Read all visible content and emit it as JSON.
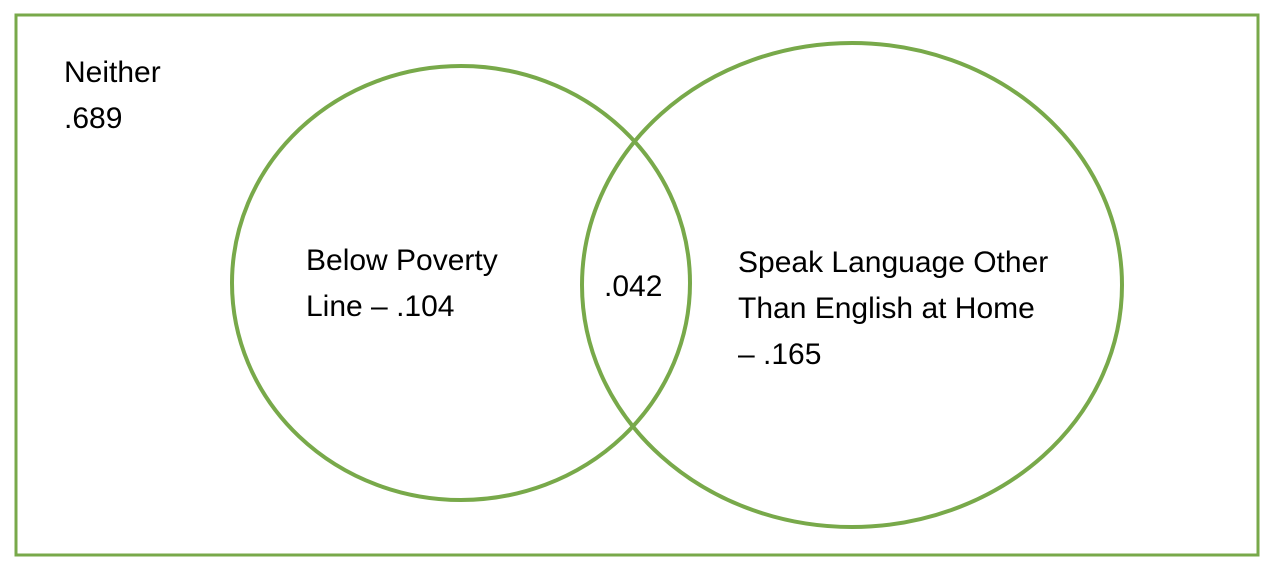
{
  "colors": {
    "outline": "#78a94a",
    "frame_fill": "#ffffff",
    "text": "#000000"
  },
  "venn": {
    "neither": {
      "label": "Neither",
      "value": ".689"
    },
    "set_a": {
      "line1": "Below Poverty",
      "line2": "Line – .104"
    },
    "intersection": {
      "value": ".042"
    },
    "set_b": {
      "line1": "Speak Language Other",
      "line2": "Than English at Home",
      "line3": "– .165"
    }
  }
}
